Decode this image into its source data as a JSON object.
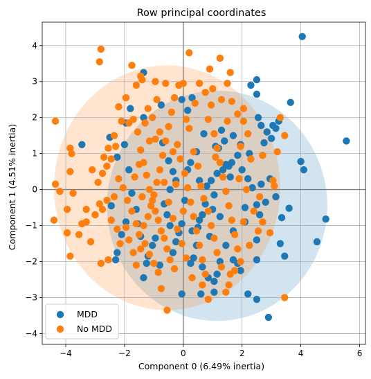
{
  "chart_data": {
    "type": "scatter",
    "title": "Row principal coordinates",
    "xlabel": "Component 0 (6.49% inertia)",
    "ylabel": "Component 1 (4.51% inertia)",
    "xlim": [
      -4.8,
      6.2
    ],
    "ylim": [
      -4.3,
      4.65
    ],
    "xticks": [
      -4,
      -2,
      0,
      2,
      4,
      6
    ],
    "yticks": [
      -4,
      -3,
      -2,
      -1,
      0,
      1,
      2,
      3,
      4
    ],
    "grid": true,
    "reference_lines": [
      {
        "axis": "x",
        "value": 0
      },
      {
        "axis": "y",
        "value": 0
      }
    ],
    "legend": {
      "position": "lower-left"
    },
    "series": [
      {
        "name": "MDD",
        "color": "#1f77b4",
        "ellipse": {
          "cx": 1.15,
          "cy": -0.45,
          "rx": 3.75,
          "ry": 3.2
        },
        "points": [
          [
            4.05,
            4.25
          ],
          [
            5.55,
            1.35
          ],
          [
            4.85,
            -0.82
          ],
          [
            4.55,
            -1.45
          ],
          [
            4.1,
            0.55
          ],
          [
            4.0,
            0.78
          ],
          [
            3.65,
            2.42
          ],
          [
            3.6,
            -0.52
          ],
          [
            3.45,
            -1.85
          ],
          [
            3.35,
            -0.78
          ],
          [
            3.3,
            -1.5
          ],
          [
            3.25,
            1.9
          ],
          [
            3.15,
            1.7
          ],
          [
            3.05,
            1.78
          ],
          [
            3.0,
            1.42
          ],
          [
            2.85,
            1.6
          ],
          [
            2.75,
            1.3
          ],
          [
            2.65,
            1.78
          ],
          [
            2.5,
            2.65
          ],
          [
            2.5,
            3.05
          ],
          [
            2.3,
            2.9
          ],
          [
            2.25,
            1.0
          ],
          [
            2.5,
            -0.42
          ],
          [
            2.6,
            -0.7
          ],
          [
            2.5,
            -1.4
          ],
          [
            2.5,
            -1.95
          ],
          [
            2.2,
            -2.9
          ],
          [
            2.5,
            -3.05
          ],
          [
            2.9,
            -3.55
          ],
          [
            2.8,
            -0.35
          ],
          [
            2.2,
            0.3
          ],
          [
            2.1,
            -0.5
          ],
          [
            2.0,
            0.55
          ],
          [
            1.95,
            1.25
          ],
          [
            1.85,
            0.95
          ],
          [
            1.7,
            1.5
          ],
          [
            1.65,
            0.75
          ],
          [
            1.55,
            0.65
          ],
          [
            1.45,
            0.7
          ],
          [
            1.35,
            0.55
          ],
          [
            1.4,
            1.35
          ],
          [
            1.3,
            1.65
          ],
          [
            1.2,
            1.15
          ],
          [
            1.15,
            0.45
          ],
          [
            1.1,
            1.2
          ],
          [
            1.05,
            -0.15
          ],
          [
            0.95,
            0.25
          ],
          [
            0.8,
            0.1
          ],
          [
            0.75,
            -0.4
          ],
          [
            0.65,
            -0.7
          ],
          [
            0.55,
            -0.85
          ],
          [
            0.5,
            -1.05
          ],
          [
            0.45,
            -1.55
          ],
          [
            0.35,
            -1.9
          ],
          [
            0.25,
            -2.05
          ],
          [
            0.15,
            0.55
          ],
          [
            0.05,
            -0.3
          ],
          [
            -0.05,
            -0.95
          ],
          [
            -0.15,
            -1.2
          ],
          [
            -0.25,
            -1.45
          ],
          [
            -0.35,
            -1.75
          ],
          [
            -0.45,
            -1.0
          ],
          [
            -0.55,
            -0.7
          ],
          [
            -0.65,
            -0.4
          ],
          [
            -0.7,
            1.3
          ],
          [
            -0.75,
            2.35
          ],
          [
            -0.5,
            0.8
          ],
          [
            -0.35,
            0.5
          ],
          [
            -0.25,
            0.25
          ],
          [
            0.15,
            2.2
          ],
          [
            -0.05,
            2.5
          ],
          [
            0.3,
            2.55
          ],
          [
            -0.95,
            -1.35
          ],
          [
            -1.05,
            -1.55
          ],
          [
            -1.2,
            -1.85
          ],
          [
            -1.25,
            -2.05
          ],
          [
            -1.35,
            -2.45
          ],
          [
            -1.45,
            -1.3
          ],
          [
            -1.55,
            -0.95
          ],
          [
            -1.6,
            -0.55
          ],
          [
            -1.75,
            -0.1
          ],
          [
            -1.85,
            0.55
          ],
          [
            -1.95,
            -0.9
          ],
          [
            -2.1,
            -1.25
          ],
          [
            -2.25,
            -1.75
          ],
          [
            -2.3,
            -1.95
          ],
          [
            -1.35,
            2.0
          ],
          [
            -1.8,
            2.25
          ],
          [
            -1.95,
            1.85
          ],
          [
            -2.5,
            1.45
          ],
          [
            -2.0,
            1.25
          ],
          [
            -2.25,
            0.9
          ],
          [
            -2.45,
            -0.45
          ],
          [
            -3.45,
            1.25
          ],
          [
            -1.35,
            3.25
          ],
          [
            1.7,
            -1.15
          ],
          [
            1.45,
            -1.55
          ],
          [
            1.25,
            -2.0
          ],
          [
            1.15,
            -2.35
          ],
          [
            1.05,
            -2.55
          ],
          [
            0.85,
            -2.45
          ],
          [
            0.65,
            -2.15
          ],
          [
            0.55,
            0.25
          ],
          [
            0.45,
            1.05
          ],
          [
            0.25,
            0.75
          ],
          [
            1.85,
            -2.05
          ],
          [
            1.7,
            -1.95
          ],
          [
            1.95,
            -2.25
          ],
          [
            2.1,
            -0.9
          ],
          [
            2.35,
            0.05
          ],
          [
            2.65,
            0.15
          ],
          [
            2.95,
            0.3
          ],
          [
            3.15,
            -0.2
          ],
          [
            1.25,
            -0.75
          ],
          [
            1.0,
            -0.55
          ],
          [
            0.9,
            -1.3
          ],
          [
            0.6,
            -2.9
          ],
          [
            1.05,
            -2.85
          ],
          [
            -0.05,
            -2.9
          ],
          [
            2.55,
            2.0
          ],
          [
            0.3,
            -1.15
          ],
          [
            -0.8,
            -2.1
          ],
          [
            -0.45,
            0.0
          ],
          [
            0.7,
            1.55
          ],
          [
            1.6,
            0.35
          ]
        ]
      },
      {
        "name": "No MDD",
        "color": "#ff7f0e",
        "ellipse": {
          "cx": -0.55,
          "cy": 0.05,
          "rx": 3.85,
          "ry": 3.4
        },
        "points": [
          [
            -2.8,
            3.9
          ],
          [
            -2.85,
            3.55
          ],
          [
            -1.75,
            3.45
          ],
          [
            -1.4,
            3.05
          ],
          [
            -1.45,
            3.15
          ],
          [
            0.2,
            3.8
          ],
          [
            1.25,
            3.65
          ],
          [
            0.0,
            2.95
          ],
          [
            0.55,
            2.95
          ],
          [
            1.5,
            2.95
          ],
          [
            1.6,
            3.25
          ],
          [
            -4.35,
            1.9
          ],
          [
            -3.85,
            1.15
          ],
          [
            -3.8,
            1.0
          ],
          [
            -3.75,
            -0.1
          ],
          [
            -3.85,
            0.5
          ],
          [
            -4.2,
            -0.05
          ],
          [
            -4.35,
            0.15
          ],
          [
            -4.4,
            -0.85
          ],
          [
            -3.95,
            -0.55
          ],
          [
            -3.95,
            -1.2
          ],
          [
            -3.85,
            -1.85
          ],
          [
            -3.45,
            -0.95
          ],
          [
            -3.3,
            -0.55
          ],
          [
            -3.1,
            0.55
          ],
          [
            -2.9,
            0.2
          ],
          [
            -2.85,
            -0.4
          ],
          [
            -2.75,
            -0.55
          ],
          [
            -2.8,
            -2.05
          ],
          [
            -2.55,
            -1.95
          ],
          [
            -2.7,
            0.9
          ],
          [
            -2.55,
            1.15
          ],
          [
            -2.35,
            1.5
          ],
          [
            -2.2,
            2.3
          ],
          [
            -2.1,
            1.9
          ],
          [
            -1.95,
            2.55
          ],
          [
            -1.85,
            1.85
          ],
          [
            -1.7,
            1.95
          ],
          [
            -1.55,
            1.6
          ],
          [
            -1.45,
            1.1
          ],
          [
            -1.35,
            0.75
          ],
          [
            -1.25,
            0.4
          ],
          [
            -1.15,
            0.0
          ],
          [
            -1.05,
            -0.3
          ],
          [
            -0.95,
            -0.6
          ],
          [
            -0.85,
            -0.85
          ],
          [
            -0.75,
            -1.15
          ],
          [
            -0.65,
            -1.35
          ],
          [
            -0.55,
            -1.65
          ],
          [
            -0.45,
            -1.95
          ],
          [
            -2.45,
            -0.85
          ],
          [
            -2.35,
            -0.2
          ],
          [
            -2.2,
            0.3
          ],
          [
            -2.15,
            -1.5
          ],
          [
            -1.95,
            -1.05
          ],
          [
            -1.85,
            -1.4
          ],
          [
            -1.7,
            -1.75
          ],
          [
            -1.6,
            -2.1
          ],
          [
            -1.45,
            -1.65
          ],
          [
            -1.35,
            -1.0
          ],
          [
            -1.2,
            -0.75
          ],
          [
            -1.1,
            -0.45
          ],
          [
            -1.0,
            -0.15
          ],
          [
            -0.9,
            0.2
          ],
          [
            -0.8,
            0.55
          ],
          [
            -0.7,
            0.95
          ],
          [
            -0.6,
            1.35
          ],
          [
            -0.5,
            1.75
          ],
          [
            -0.4,
            2.15
          ],
          [
            -0.3,
            2.55
          ],
          [
            -0.2,
            1.25
          ],
          [
            -0.1,
            0.85
          ],
          [
            0.05,
            0.45
          ],
          [
            0.15,
            0.05
          ],
          [
            0.25,
            -0.35
          ],
          [
            0.35,
            -0.75
          ],
          [
            0.45,
            -1.15
          ],
          [
            0.55,
            -1.55
          ],
          [
            0.65,
            -1.95
          ],
          [
            0.75,
            -2.35
          ],
          [
            0.85,
            1.95
          ],
          [
            0.95,
            2.35
          ],
          [
            1.05,
            1.55
          ],
          [
            1.15,
            1.15
          ],
          [
            1.25,
            0.75
          ],
          [
            1.35,
            0.35
          ],
          [
            1.45,
            -0.05
          ],
          [
            1.55,
            -0.45
          ],
          [
            1.65,
            -0.85
          ],
          [
            1.75,
            -1.25
          ],
          [
            1.85,
            -1.65
          ],
          [
            1.95,
            -2.0
          ],
          [
            2.05,
            2.25
          ],
          [
            1.85,
            2.1
          ],
          [
            2.2,
            1.55
          ],
          [
            2.05,
            1.9
          ],
          [
            1.95,
            1.2
          ],
          [
            2.3,
            0.85
          ],
          [
            2.7,
            0.95
          ],
          [
            3.1,
            0.1
          ],
          [
            3.2,
            1.05
          ],
          [
            3.05,
            0.25
          ],
          [
            3.3,
            2.0
          ],
          [
            3.45,
            1.5
          ],
          [
            2.6,
            -0.2
          ],
          [
            2.7,
            -0.9
          ],
          [
            2.55,
            -1.15
          ],
          [
            2.05,
            -0.9
          ],
          [
            2.25,
            -1.55
          ],
          [
            1.75,
            -2.25
          ],
          [
            1.6,
            -2.35
          ],
          [
            1.55,
            -2.65
          ],
          [
            0.85,
            -3.05
          ],
          [
            0.65,
            -2.65
          ],
          [
            -0.75,
            -2.75
          ],
          [
            -0.55,
            -3.35
          ],
          [
            3.45,
            -3.0
          ],
          [
            -3.3,
            -0.9
          ],
          [
            -3.0,
            -0.7
          ],
          [
            -2.75,
            0.45
          ],
          [
            -2.6,
            0.65
          ],
          [
            -1.2,
            2.25
          ],
          [
            -1.05,
            2.0
          ],
          [
            -0.95,
            1.4
          ],
          [
            -0.8,
            1.6
          ],
          [
            -0.65,
            0.2
          ],
          [
            -0.5,
            -0.35
          ],
          [
            -0.35,
            -0.8
          ],
          [
            -0.2,
            -1.1
          ],
          [
            -0.05,
            -1.5
          ],
          [
            0.1,
            -1.9
          ],
          [
            0.2,
            1.7
          ],
          [
            0.35,
            1.05
          ],
          [
            0.5,
            0.65
          ],
          [
            0.6,
            0.1
          ],
          [
            0.7,
            -0.25
          ],
          [
            0.85,
            -0.6
          ],
          [
            0.95,
            -1.0
          ],
          [
            1.05,
            -1.35
          ],
          [
            1.15,
            -1.75
          ],
          [
            1.3,
            -2.15
          ],
          [
            -2.05,
            0.05
          ],
          [
            -1.9,
            -0.3
          ],
          [
            -1.75,
            -0.6
          ],
          [
            -1.6,
            -0.95
          ],
          [
            -1.5,
            -1.25
          ],
          [
            -1.3,
            -1.5
          ],
          [
            -1.15,
            -1.8
          ],
          [
            -1.0,
            -2.05
          ],
          [
            -0.85,
            -2.3
          ],
          [
            -2.45,
            0.85
          ],
          [
            -2.3,
            1.2
          ],
          [
            -2.6,
            -0.3
          ],
          [
            -1.65,
            0.35
          ],
          [
            -1.5,
            0.7
          ],
          [
            -1.4,
            -0.2
          ],
          [
            -0.35,
            1.05
          ],
          [
            -0.25,
            0.15
          ],
          [
            0.0,
            -0.6
          ],
          [
            0.1,
            1.95
          ],
          [
            0.4,
            2.4
          ],
          [
            0.75,
            2.7
          ],
          [
            1.0,
            2.8
          ],
          [
            1.3,
            2.5
          ],
          [
            1.65,
            2.45
          ],
          [
            -1.15,
            1.35
          ],
          [
            -1.3,
            1.85
          ],
          [
            -0.15,
            2.9
          ],
          [
            -0.6,
            2.95
          ],
          [
            -0.9,
            2.5
          ],
          [
            1.9,
            0.3
          ],
          [
            2.15,
            0.0
          ],
          [
            2.4,
            -0.6
          ],
          [
            1.5,
            1.9
          ],
          [
            1.1,
            0.9
          ],
          [
            -3.55,
            -1.25
          ],
          [
            -3.15,
            -1.45
          ],
          [
            -2.25,
            -1.1
          ],
          [
            -0.3,
            -2.2
          ],
          [
            0.3,
            -2.45
          ],
          [
            1.45,
            -2.85
          ],
          [
            2.95,
            -1.2
          ],
          [
            0.9,
            3.35
          ],
          [
            -0.95,
            3.0
          ],
          [
            -1.6,
            2.9
          ]
        ]
      }
    ]
  },
  "legend": {
    "items": [
      {
        "label": "MDD",
        "color": "#1f77b4"
      },
      {
        "label": "No MDD",
        "color": "#ff7f0e"
      }
    ]
  }
}
